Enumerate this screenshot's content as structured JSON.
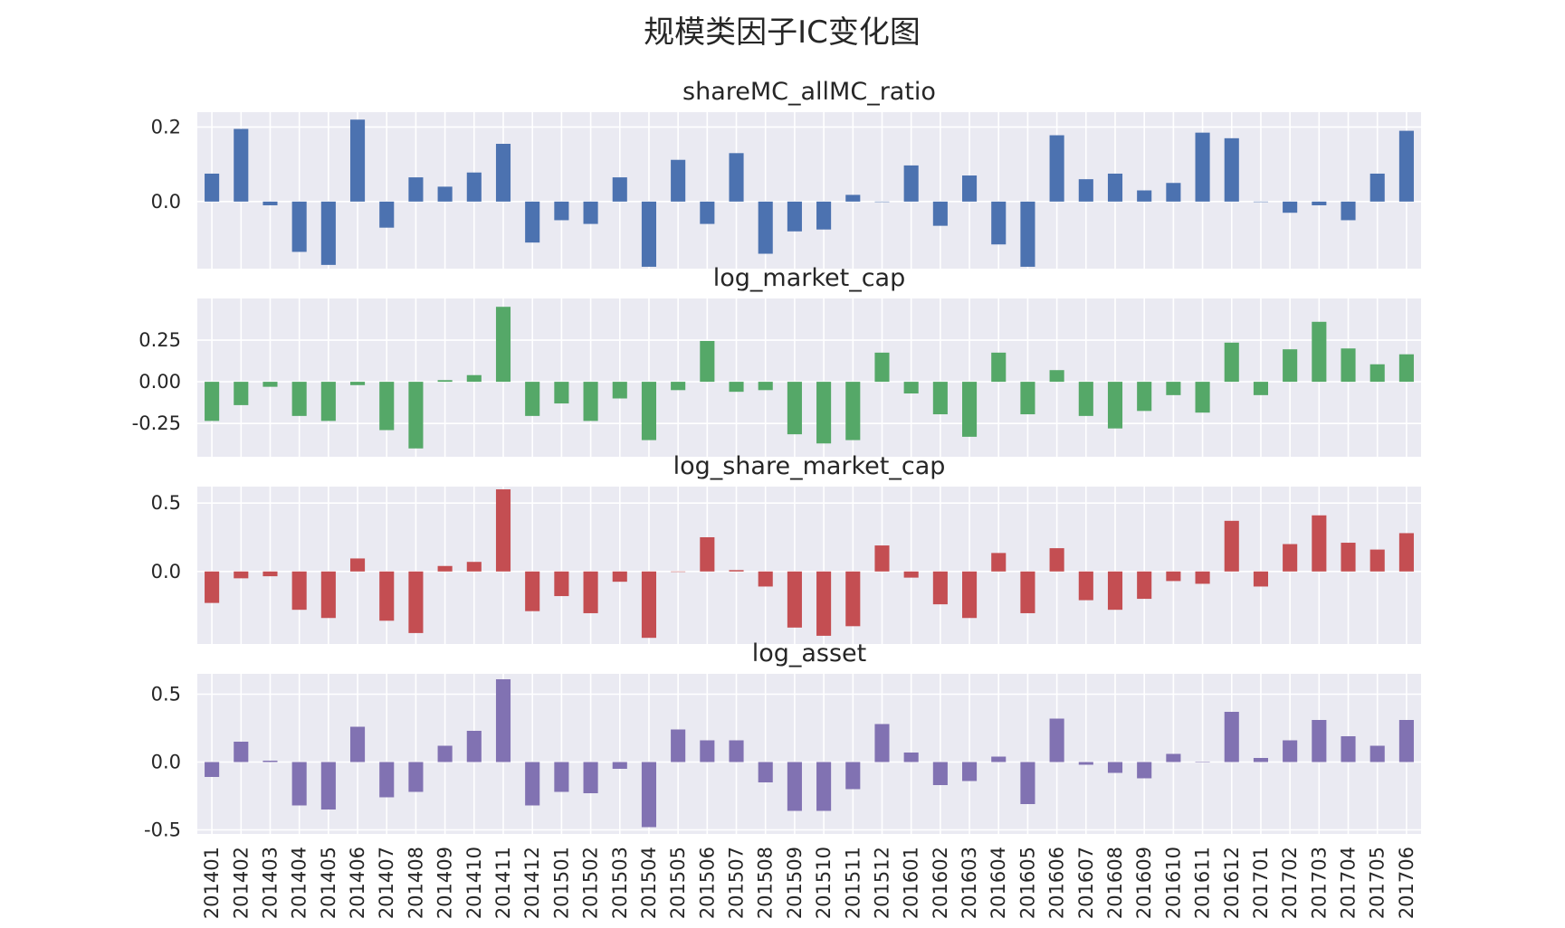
{
  "title": "规模类因子IC变化图",
  "colors": {
    "panel_bg": "#EAEAF2",
    "grid": "#ffffff",
    "text": "#262626"
  },
  "chart_data": [
    {
      "type": "bar",
      "title": "shareMC_allMC_ratio",
      "color": "#4C72B0",
      "ylim": [
        -0.18,
        0.24
      ],
      "yticks": [
        0.0,
        0.2
      ],
      "ytick_labels": [
        "0.0",
        "0.2"
      ],
      "categories": [
        "201401",
        "201402",
        "201403",
        "201404",
        "201405",
        "201406",
        "201407",
        "201408",
        "201409",
        "201410",
        "201411",
        "201412",
        "201501",
        "201502",
        "201503",
        "201504",
        "201505",
        "201506",
        "201507",
        "201508",
        "201509",
        "201510",
        "201511",
        "201512",
        "201601",
        "201602",
        "201603",
        "201604",
        "201605",
        "201606",
        "201607",
        "201608",
        "201609",
        "201610",
        "201611",
        "201612",
        "201701",
        "201702",
        "201703",
        "201704",
        "201705",
        "201706"
      ],
      "values": [
        0.075,
        0.195,
        -0.01,
        -0.135,
        -0.17,
        0.22,
        -0.07,
        0.065,
        0.04,
        0.078,
        0.155,
        -0.11,
        -0.05,
        -0.06,
        0.065,
        -0.175,
        0.112,
        -0.06,
        0.13,
        -0.14,
        -0.08,
        -0.075,
        0.018,
        0.0,
        0.097,
        -0.065,
        0.07,
        -0.115,
        -0.175,
        0.178,
        0.06,
        0.075,
        0.03,
        0.05,
        0.185,
        0.17,
        0.0,
        -0.03,
        -0.01,
        -0.05,
        0.075,
        0.19
      ]
    },
    {
      "type": "bar",
      "title": "log_market_cap",
      "color": "#55A868",
      "ylim": [
        -0.45,
        0.5
      ],
      "yticks": [
        -0.25,
        0.0,
        0.25
      ],
      "ytick_labels": [
        "-0.25",
        "0.00",
        "0.25"
      ],
      "categories": [
        "201401",
        "201402",
        "201403",
        "201404",
        "201405",
        "201406",
        "201407",
        "201408",
        "201409",
        "201410",
        "201411",
        "201412",
        "201501",
        "201502",
        "201503",
        "201504",
        "201505",
        "201506",
        "201507",
        "201508",
        "201509",
        "201510",
        "201511",
        "201512",
        "201601",
        "201602",
        "201603",
        "201604",
        "201605",
        "201606",
        "201607",
        "201608",
        "201609",
        "201610",
        "201611",
        "201612",
        "201701",
        "201702",
        "201703",
        "201704",
        "201705",
        "201706"
      ],
      "values": [
        -0.235,
        -0.14,
        -0.03,
        -0.205,
        -0.235,
        -0.02,
        -0.29,
        -0.4,
        0.01,
        0.04,
        0.45,
        -0.205,
        -0.13,
        -0.235,
        -0.1,
        -0.35,
        -0.05,
        0.245,
        -0.06,
        -0.05,
        -0.315,
        -0.37,
        -0.35,
        0.175,
        -0.07,
        -0.195,
        -0.33,
        0.175,
        -0.195,
        0.07,
        -0.205,
        -0.28,
        -0.175,
        -0.08,
        -0.185,
        0.235,
        -0.08,
        0.195,
        0.36,
        0.2,
        0.105,
        0.165
      ]
    },
    {
      "type": "bar",
      "title": "log_share_market_cap",
      "color": "#C44E52",
      "ylim": [
        -0.53,
        0.62
      ],
      "yticks": [
        0.0,
        0.5
      ],
      "ytick_labels": [
        "0.0",
        "0.5"
      ],
      "categories": [
        "201401",
        "201402",
        "201403",
        "201404",
        "201405",
        "201406",
        "201407",
        "201408",
        "201409",
        "201410",
        "201411",
        "201412",
        "201501",
        "201502",
        "201503",
        "201504",
        "201505",
        "201506",
        "201507",
        "201508",
        "201509",
        "201510",
        "201511",
        "201512",
        "201601",
        "201602",
        "201603",
        "201604",
        "201605",
        "201606",
        "201607",
        "201608",
        "201609",
        "201610",
        "201611",
        "201612",
        "201701",
        "201702",
        "201703",
        "201704",
        "201705",
        "201706"
      ],
      "values": [
        -0.23,
        -0.05,
        -0.035,
        -0.28,
        -0.34,
        0.095,
        -0.36,
        -0.45,
        0.04,
        0.07,
        0.6,
        -0.29,
        -0.18,
        -0.305,
        -0.075,
        -0.485,
        0.0,
        0.25,
        0.01,
        -0.11,
        -0.41,
        -0.47,
        -0.4,
        0.19,
        -0.045,
        -0.24,
        -0.34,
        0.135,
        -0.305,
        0.17,
        -0.21,
        -0.28,
        -0.2,
        -0.07,
        -0.09,
        0.37,
        -0.11,
        0.2,
        0.41,
        0.21,
        0.16,
        0.28
      ]
    },
    {
      "type": "bar",
      "title": "log_asset",
      "color": "#8172B2",
      "ylim": [
        -0.53,
        0.65
      ],
      "yticks": [
        -0.5,
        0.0,
        0.5
      ],
      "ytick_labels": [
        "-0.5",
        "0.0",
        "0.5"
      ],
      "categories": [
        "201401",
        "201402",
        "201403",
        "201404",
        "201405",
        "201406",
        "201407",
        "201408",
        "201409",
        "201410",
        "201411",
        "201412",
        "201501",
        "201502",
        "201503",
        "201504",
        "201505",
        "201506",
        "201507",
        "201508",
        "201509",
        "201510",
        "201511",
        "201512",
        "201601",
        "201602",
        "201603",
        "201604",
        "201605",
        "201606",
        "201607",
        "201608",
        "201609",
        "201610",
        "201611",
        "201612",
        "201701",
        "201702",
        "201703",
        "201704",
        "201705",
        "201706"
      ],
      "values": [
        -0.11,
        0.15,
        0.01,
        -0.32,
        -0.35,
        0.26,
        -0.26,
        -0.22,
        0.12,
        0.23,
        0.61,
        -0.32,
        -0.22,
        -0.23,
        -0.05,
        -0.48,
        0.24,
        0.16,
        0.16,
        -0.15,
        -0.36,
        -0.36,
        -0.2,
        0.28,
        0.07,
        -0.17,
        -0.14,
        0.04,
        -0.31,
        0.32,
        -0.02,
        -0.08,
        -0.12,
        0.06,
        0.0,
        0.37,
        0.03,
        0.16,
        0.31,
        0.19,
        0.12,
        0.31
      ]
    }
  ]
}
